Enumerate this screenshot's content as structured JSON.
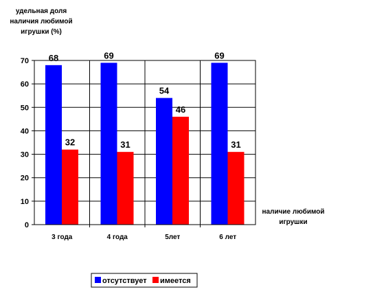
{
  "chart_data": {
    "type": "bar",
    "ylabel_lines": [
      "удельная доля",
      "наличия любимой",
      "игрушки (%)"
    ],
    "xlabel_lines": [
      "наличие любимой",
      "игрушки"
    ],
    "categories": [
      "3 года",
      "4 года",
      "5лет",
      "6 лет"
    ],
    "series": [
      {
        "name": "отсутствует",
        "color": "#0000ff",
        "values": [
          68,
          69,
          54,
          69
        ]
      },
      {
        "name": "имеется",
        "color": "#ff0000",
        "values": [
          32,
          31,
          46,
          31
        ]
      }
    ],
    "ylim": [
      0,
      70
    ],
    "yticks": [
      0,
      10,
      20,
      30,
      40,
      50,
      60,
      70
    ],
    "grid": true,
    "legend_position": "bottom"
  }
}
